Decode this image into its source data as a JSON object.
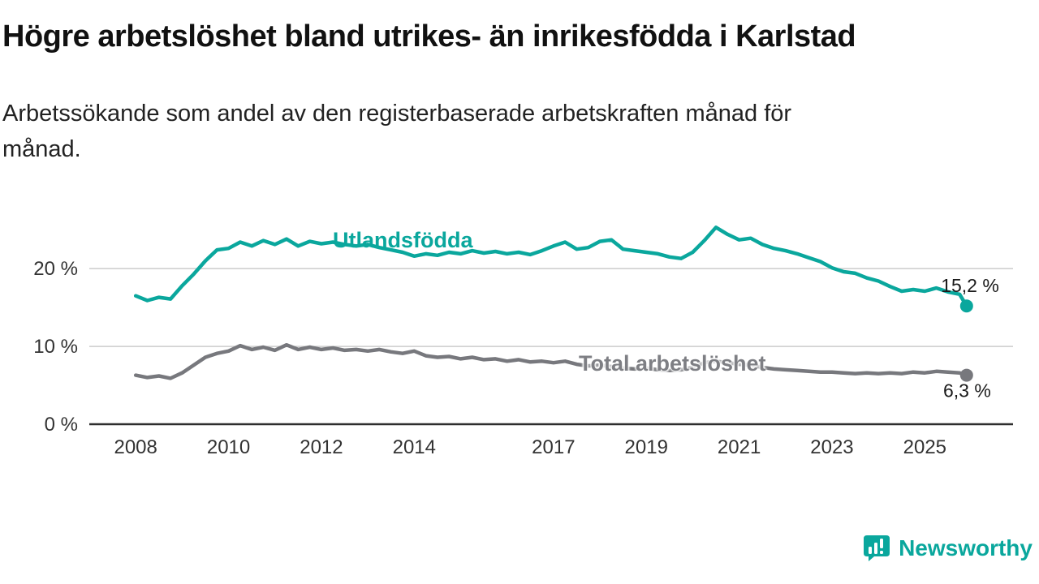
{
  "chart_data": {
    "type": "line",
    "title": "Högre arbetslöshet bland utrikes- än inrikesfödda i Karlstad",
    "subtitle_lines": [
      "Arbetssökande som andel av den registerbaserade arbetskraften månad för",
      "månad."
    ],
    "xlim": [
      2007.0,
      2026.9
    ],
    "ylim": [
      0,
      27
    ],
    "grid": "horizontal-y",
    "grid_color": "#cccccc",
    "axis_line_color": "#2e2e2e",
    "axis_text_color": "#333333",
    "value_label_color": "#1a1a1a",
    "x_ticks": [
      2008,
      2010,
      2012,
      2014,
      2017,
      2019,
      2021,
      2023,
      2025
    ],
    "y_ticks": [
      {
        "value": 0,
        "label": "0 %"
      },
      {
        "value": 10,
        "label": "10 %"
      },
      {
        "value": 20,
        "label": "20 %"
      }
    ],
    "x": [
      2008,
      2008.25,
      2008.5,
      2008.75,
      2009,
      2009.25,
      2009.5,
      2009.75,
      2010,
      2010.25,
      2010.5,
      2010.75,
      2011,
      2011.25,
      2011.5,
      2011.75,
      2012,
      2012.25,
      2012.5,
      2012.75,
      2013,
      2013.25,
      2013.5,
      2013.75,
      2014,
      2014.25,
      2014.5,
      2014.75,
      2015,
      2015.25,
      2015.5,
      2015.75,
      2016,
      2016.25,
      2016.5,
      2016.75,
      2017,
      2017.25,
      2017.5,
      2017.75,
      2018,
      2018.25,
      2018.5,
      2018.75,
      2019,
      2019.25,
      2019.5,
      2019.75,
      2020,
      2020.25,
      2020.5,
      2020.75,
      2021,
      2021.25,
      2021.5,
      2021.75,
      2022,
      2022.25,
      2022.5,
      2022.75,
      2023,
      2023.25,
      2023.5,
      2023.75,
      2024,
      2024.25,
      2024.5,
      2024.75,
      2025,
      2025.25,
      2025.5,
      2025.75,
      2025.9
    ],
    "series": [
      {
        "name": "Utlandsfödda",
        "color": "#0aa79d",
        "end_label": "15,2 %",
        "end_value": 15.2,
        "end_label_position": "above",
        "values": [
          16.5,
          15.9,
          16.3,
          16.1,
          17.8,
          19.3,
          21.0,
          22.4,
          22.6,
          23.4,
          22.9,
          23.6,
          23.1,
          23.8,
          22.9,
          23.5,
          23.2,
          23.4,
          23.1,
          22.9,
          23.1,
          22.7,
          22.4,
          22.1,
          21.6,
          21.9,
          21.7,
          22.1,
          21.9,
          22.3,
          22.0,
          22.2,
          21.9,
          22.1,
          21.8,
          22.3,
          22.9,
          23.4,
          22.5,
          22.7,
          23.5,
          23.7,
          22.5,
          22.3,
          22.1,
          21.9,
          21.5,
          21.3,
          22.1,
          23.6,
          25.3,
          24.4,
          23.7,
          23.9,
          23.1,
          22.6,
          22.3,
          21.9,
          21.4,
          20.9,
          20.1,
          19.6,
          19.4,
          18.8,
          18.4,
          17.7,
          17.1,
          17.3,
          17.1,
          17.5,
          17.0,
          16.7,
          15.2
        ]
      },
      {
        "name": "Total arbetslöshet",
        "color": "#77787d",
        "label_color": "#7e7f84",
        "end_label": "6,3 %",
        "end_value": 6.3,
        "end_label_position": "below",
        "values": [
          6.3,
          6.0,
          6.2,
          5.9,
          6.6,
          7.6,
          8.6,
          9.1,
          9.4,
          10.1,
          9.6,
          9.9,
          9.5,
          10.2,
          9.6,
          9.9,
          9.6,
          9.8,
          9.5,
          9.6,
          9.4,
          9.6,
          9.3,
          9.1,
          9.4,
          8.8,
          8.6,
          8.7,
          8.4,
          8.6,
          8.3,
          8.4,
          8.1,
          8.3,
          8.0,
          8.1,
          7.9,
          8.1,
          7.7,
          7.5,
          7.6,
          7.4,
          7.2,
          7.1,
          7.2,
          7.0,
          6.9,
          7.0,
          7.3,
          7.9,
          8.1,
          7.9,
          7.7,
          7.6,
          7.3,
          7.1,
          7.0,
          6.9,
          6.8,
          6.7,
          6.7,
          6.6,
          6.5,
          6.6,
          6.5,
          6.6,
          6.5,
          6.7,
          6.6,
          6.8,
          6.7,
          6.6,
          6.3
        ]
      }
    ]
  },
  "branding": {
    "name": "Newsworthy",
    "color": "#0aa79d"
  }
}
